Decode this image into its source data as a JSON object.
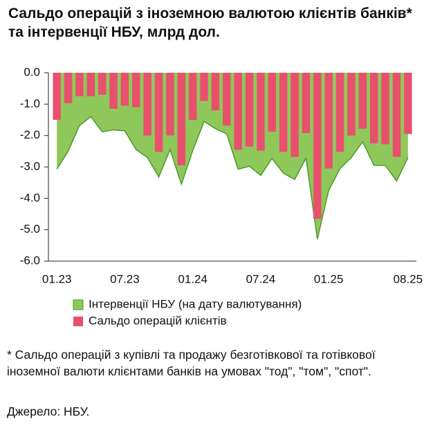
{
  "chart_data": {
    "type": "bar-area",
    "title": "Сальдо операцій з іноземною валютою клієнтів банків* та інтервенції НБУ, млрд дол.",
    "categories": [
      "01.23",
      null,
      null,
      null,
      null,
      null,
      "07.23",
      null,
      null,
      null,
      null,
      null,
      "01.24",
      null,
      null,
      null,
      null,
      null,
      "07.24",
      null,
      null,
      null,
      null,
      null,
      "01.25",
      null,
      null,
      null,
      null,
      null,
      null,
      "08.25"
    ],
    "series": [
      {
        "name": "Інтервенції НБУ (на дату валютування)",
        "color": "#8fc85a",
        "kind": "area",
        "values": [
          -3.07,
          -2.5,
          -1.68,
          -1.4,
          -1.88,
          -1.82,
          -1.85,
          -2.45,
          -2.7,
          -3.32,
          -2.45,
          -3.55,
          -2.48,
          -1.55,
          -1.78,
          -1.95,
          -3.07,
          -2.98,
          -3.27,
          -2.73,
          -3.2,
          -3.4,
          -2.72,
          -5.3,
          -3.75,
          -3.05,
          -2.7,
          -2.2,
          -2.95,
          -2.95,
          -3.45,
          -2.7
        ]
      },
      {
        "name": "Сальдо операцій клієнтів",
        "color": "#e8506e",
        "kind": "bar",
        "values": [
          -1.5,
          -0.97,
          -0.75,
          -0.75,
          -0.7,
          -1.15,
          -1.05,
          -1.1,
          -2.0,
          -2.52,
          -2.0,
          -2.95,
          -1.5,
          -0.9,
          -1.2,
          -1.68,
          -2.45,
          -2.35,
          -2.48,
          -1.88,
          -2.52,
          -2.68,
          -1.92,
          -4.65,
          -3.05,
          -2.52,
          -2.0,
          -1.78,
          -2.25,
          -2.28,
          -2.68,
          -1.95
        ]
      }
    ],
    "ylim": [
      -6,
      0
    ],
    "yticks": [
      {
        "value": 0,
        "label": "0.0"
      },
      {
        "value": -1,
        "label": "-1.0"
      },
      {
        "value": -2,
        "label": "-2.0"
      },
      {
        "value": -3,
        "label": "-3.0"
      },
      {
        "value": -4,
        "label": "-4.0"
      },
      {
        "value": -5,
        "label": "-5.0"
      },
      {
        "value": -6,
        "label": "-6.0"
      }
    ],
    "note": "* Сальдо операцій з купівлі та продажу безготівкової та готівкової іноземної валюти клієнтами банків на умовах \"тод\", \"том\", \"спот\".",
    "source": "Джерело: НБУ."
  }
}
